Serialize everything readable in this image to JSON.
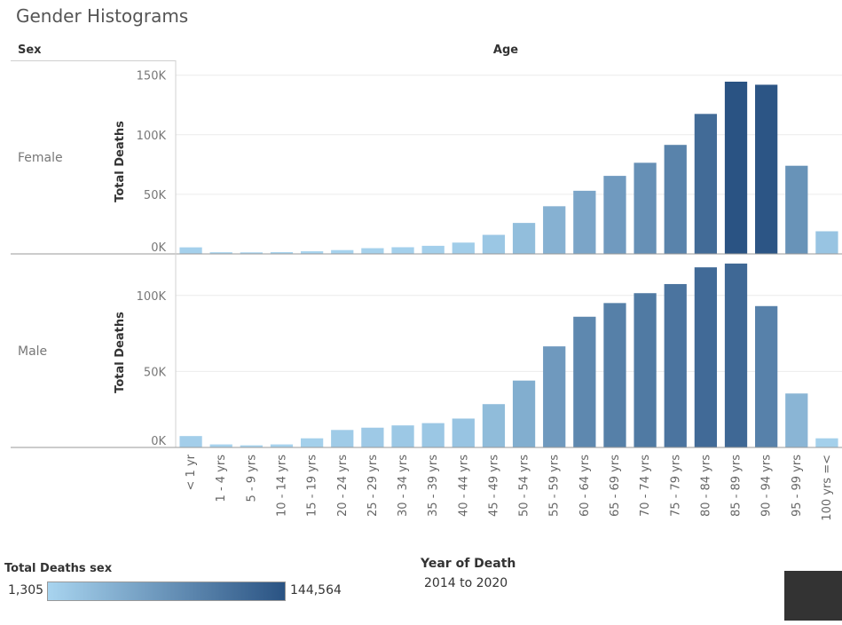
{
  "title": "Gender Histograms",
  "headers": {
    "sex": "Sex",
    "age": "Age"
  },
  "rows": [
    {
      "label": "Female"
    },
    {
      "label": "Male"
    }
  ],
  "legend": {
    "title": "Total Deaths sex",
    "min": "1,305",
    "max": "144,564",
    "color_low": "#a8d4ef",
    "color_high": "#2a5383"
  },
  "filter": {
    "title": "Year of Death",
    "value": "2014 to 2020"
  },
  "chart_data": {
    "type": "bar",
    "categories": [
      "< 1 yr",
      "1 - 4 yrs",
      "5 - 9 yrs",
      "10 - 14 yrs",
      "15 - 19 yrs",
      "20 - 24 yrs",
      "25 - 29 yrs",
      "30 - 34 yrs",
      "35 - 39 yrs",
      "40 - 44 yrs",
      "45 - 49 yrs",
      "50 - 54 yrs",
      "55 - 59 yrs",
      "60 - 64 yrs",
      "65 - 69 yrs",
      "70 - 74 yrs",
      "75 - 79 yrs",
      "80 - 84 yrs",
      "85 - 89 yrs",
      "90 - 94 yrs",
      "95 - 99 yrs",
      "100 yrs =<"
    ],
    "xlabel": "Age",
    "ylabel": "Total Deaths",
    "color_scale": {
      "min": 1305,
      "max": 144564,
      "low": "#a8d4ef",
      "high": "#2a5383"
    },
    "panels": [
      {
        "name": "Female",
        "ylim": [
          0,
          155000
        ],
        "yticks": [
          0,
          50000,
          100000,
          150000
        ],
        "ytick_labels": [
          "0K",
          "50K",
          "100K",
          "150K"
        ],
        "values": [
          5500,
          1400,
          1305,
          1500,
          2200,
          3200,
          4800,
          5600,
          6800,
          9500,
          16000,
          26000,
          40000,
          53000,
          65500,
          76500,
          91500,
          117500,
          144564,
          142000,
          74000,
          19000
        ]
      },
      {
        "name": "Male",
        "ylim": [
          0,
          125000
        ],
        "yticks": [
          0,
          50000,
          100000
        ],
        "ytick_labels": [
          "0K",
          "50K",
          "100K"
        ],
        "values": [
          7500,
          2000,
          1400,
          2000,
          6000,
          11500,
          13000,
          14500,
          16000,
          19000,
          28500,
          44000,
          66500,
          86000,
          95000,
          101500,
          107500,
          118500,
          121000,
          93000,
          35500,
          6000
        ]
      }
    ]
  }
}
